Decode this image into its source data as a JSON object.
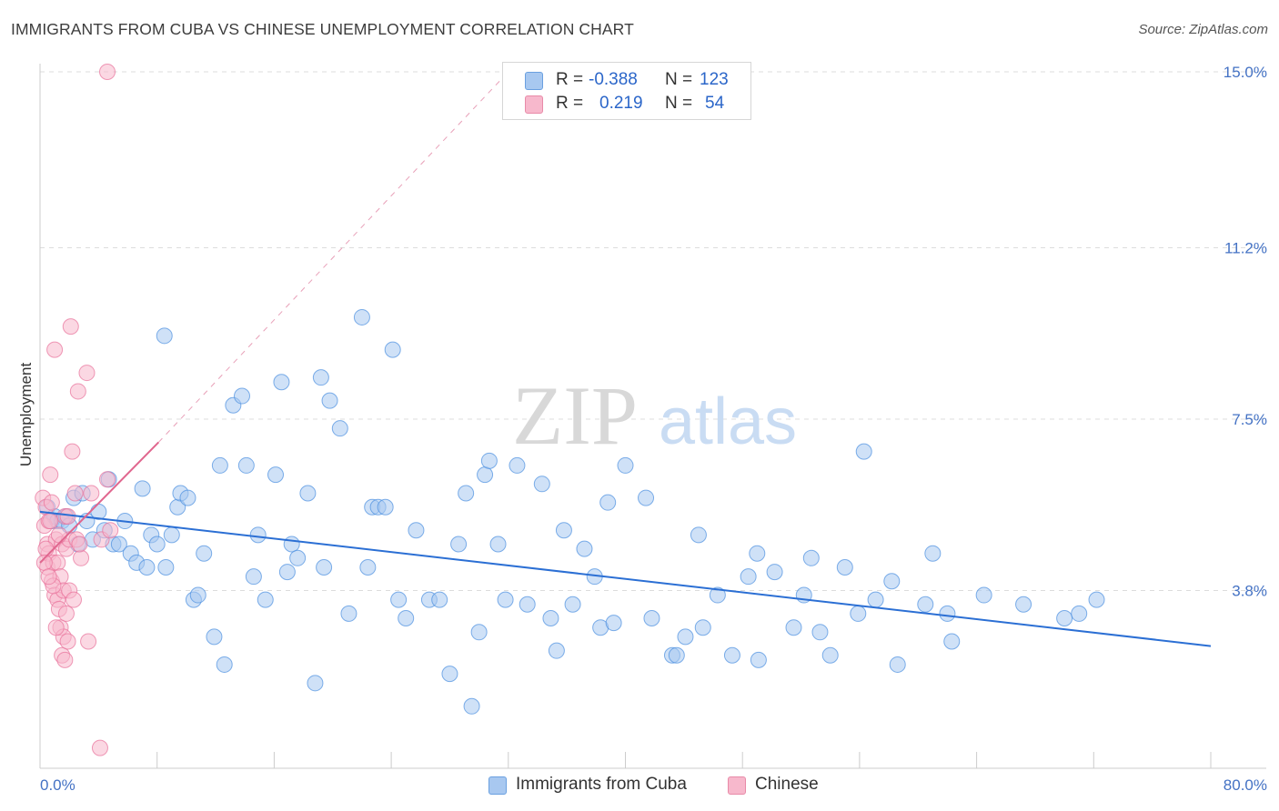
{
  "title": "IMMIGRANTS FROM CUBA VS CHINESE UNEMPLOYMENT CORRELATION CHART",
  "source": "Source: ZipAtlas.com",
  "watermark": {
    "zip": "ZIP",
    "atlas": "atlas"
  },
  "legend": {
    "r_label": "R =",
    "n_label": "N =",
    "rows": [
      {
        "name": "Immigrants from Cuba",
        "r": "-0.388",
        "n": "123",
        "color": "#a8c8f0"
      },
      {
        "name": "Chinese",
        "r": "0.219",
        "n": "54",
        "color": "#f7b8cc"
      }
    ]
  },
  "chart_data": {
    "type": "scatter",
    "title": "IMMIGRANTS FROM CUBA VS CHINESE UNEMPLOYMENT CORRELATION CHART",
    "xlabel": "",
    "ylabel": "Unemployment",
    "xlim": [
      0,
      80
    ],
    "ylim": [
      0,
      15.5
    ],
    "x_tick_labels": [
      "0.0%",
      "80.0%"
    ],
    "y_ticks": [
      3.8,
      7.5,
      11.2,
      15.0
    ],
    "y_tick_labels": [
      "3.8%",
      "7.5%",
      "11.2%",
      "15.0%"
    ],
    "grid": true,
    "series": [
      {
        "name": "Immigrants from Cuba",
        "color": "#4a8fe0",
        "fill": "#a8c8f0",
        "trend": {
          "x": [
            0,
            80
          ],
          "y": [
            5.5,
            2.6
          ],
          "style": "solid"
        },
        "points": [
          [
            0.5,
            5.6
          ],
          [
            0.8,
            5.3
          ],
          [
            1.0,
            5.4
          ],
          [
            1.2,
            5.3
          ],
          [
            1.5,
            5.3
          ],
          [
            1.8,
            5.4
          ],
          [
            2.0,
            5.2
          ],
          [
            2.3,
            5.8
          ],
          [
            2.6,
            4.8
          ],
          [
            2.9,
            5.9
          ],
          [
            3.2,
            5.3
          ],
          [
            3.6,
            4.9
          ],
          [
            4.0,
            5.5
          ],
          [
            4.4,
            5.1
          ],
          [
            4.7,
            6.2
          ],
          [
            5.0,
            4.8
          ],
          [
            5.4,
            4.8
          ],
          [
            5.8,
            5.3
          ],
          [
            6.2,
            4.6
          ],
          [
            6.6,
            4.4
          ],
          [
            7.0,
            6.0
          ],
          [
            7.3,
            4.3
          ],
          [
            7.6,
            5.0
          ],
          [
            8.0,
            4.8
          ],
          [
            8.5,
            9.3
          ],
          [
            8.6,
            4.3
          ],
          [
            9.0,
            5.0
          ],
          [
            9.4,
            5.6
          ],
          [
            9.6,
            5.9
          ],
          [
            10.1,
            5.8
          ],
          [
            10.5,
            3.6
          ],
          [
            10.8,
            3.7
          ],
          [
            11.2,
            4.6
          ],
          [
            11.9,
            2.8
          ],
          [
            12.3,
            6.5
          ],
          [
            12.6,
            2.2
          ],
          [
            13.2,
            7.8
          ],
          [
            13.8,
            8.0
          ],
          [
            14.1,
            6.5
          ],
          [
            14.6,
            4.1
          ],
          [
            14.9,
            5.0
          ],
          [
            15.4,
            3.6
          ],
          [
            16.1,
            6.3
          ],
          [
            16.5,
            8.3
          ],
          [
            16.9,
            4.2
          ],
          [
            17.2,
            4.8
          ],
          [
            17.6,
            4.5
          ],
          [
            18.3,
            5.9
          ],
          [
            18.8,
            1.8
          ],
          [
            19.4,
            4.3
          ],
          [
            19.2,
            8.4
          ],
          [
            19.8,
            7.9
          ],
          [
            20.5,
            7.3
          ],
          [
            21.1,
            3.3
          ],
          [
            22.0,
            9.7
          ],
          [
            22.4,
            4.3
          ],
          [
            22.7,
            5.6
          ],
          [
            23.1,
            5.6
          ],
          [
            23.6,
            5.6
          ],
          [
            24.1,
            9.0
          ],
          [
            24.5,
            3.6
          ],
          [
            25.0,
            3.2
          ],
          [
            25.7,
            5.1
          ],
          [
            26.6,
            3.6
          ],
          [
            27.3,
            3.6
          ],
          [
            28.0,
            2.0
          ],
          [
            28.6,
            4.8
          ],
          [
            29.1,
            5.9
          ],
          [
            29.5,
            1.3
          ],
          [
            30.0,
            2.9
          ],
          [
            30.4,
            6.3
          ],
          [
            30.7,
            6.6
          ],
          [
            31.3,
            4.8
          ],
          [
            31.8,
            3.6
          ],
          [
            32.6,
            6.5
          ],
          [
            33.3,
            3.5
          ],
          [
            34.3,
            6.1
          ],
          [
            34.9,
            3.2
          ],
          [
            35.3,
            2.5
          ],
          [
            35.8,
            5.1
          ],
          [
            36.4,
            3.5
          ],
          [
            37.2,
            4.7
          ],
          [
            37.9,
            4.1
          ],
          [
            38.3,
            3.0
          ],
          [
            38.8,
            5.7
          ],
          [
            39.2,
            3.1
          ],
          [
            40.0,
            6.5
          ],
          [
            41.4,
            5.8
          ],
          [
            41.8,
            3.2
          ],
          [
            43.2,
            2.4
          ],
          [
            43.5,
            2.4
          ],
          [
            44.1,
            2.8
          ],
          [
            45.0,
            5.0
          ],
          [
            45.3,
            3.0
          ],
          [
            46.3,
            3.7
          ],
          [
            47.3,
            2.4
          ],
          [
            48.4,
            4.1
          ],
          [
            49.0,
            4.6
          ],
          [
            49.1,
            2.3
          ],
          [
            50.2,
            4.2
          ],
          [
            51.5,
            3.0
          ],
          [
            52.2,
            3.7
          ],
          [
            52.7,
            4.5
          ],
          [
            53.3,
            2.9
          ],
          [
            54.0,
            2.4
          ],
          [
            55.0,
            4.3
          ],
          [
            55.9,
            3.3
          ],
          [
            56.3,
            6.8
          ],
          [
            57.1,
            3.6
          ],
          [
            58.2,
            4.0
          ],
          [
            58.6,
            2.2
          ],
          [
            60.5,
            3.5
          ],
          [
            61.0,
            4.6
          ],
          [
            62.0,
            3.3
          ],
          [
            62.3,
            2.7
          ],
          [
            64.5,
            3.7
          ],
          [
            67.2,
            3.5
          ],
          [
            70.0,
            3.2
          ],
          [
            71.0,
            3.3
          ],
          [
            72.2,
            3.6
          ]
        ]
      },
      {
        "name": "Chinese",
        "color": "#e8709a",
        "fill": "#f7b8cc",
        "trend": {
          "x": [
            0,
            8.1
          ],
          "y": [
            4.4,
            7.0
          ],
          "style": "solid"
        },
        "trend_extension": {
          "x": [
            8.1,
            32
          ],
          "y": [
            7.0,
            15.0
          ],
          "style": "dashed"
        },
        "points": [
          [
            0.2,
            5.8
          ],
          [
            0.3,
            5.2
          ],
          [
            0.4,
            5.6
          ],
          [
            0.5,
            4.8
          ],
          [
            0.5,
            4.3
          ],
          [
            0.6,
            5.3
          ],
          [
            0.6,
            4.6
          ],
          [
            0.7,
            6.3
          ],
          [
            0.8,
            4.0
          ],
          [
            0.8,
            5.7
          ],
          [
            0.9,
            4.4
          ],
          [
            1.0,
            3.7
          ],
          [
            1.0,
            9.0
          ],
          [
            1.1,
            4.9
          ],
          [
            1.2,
            3.6
          ],
          [
            1.2,
            4.4
          ],
          [
            1.3,
            3.4
          ],
          [
            1.4,
            3.0
          ],
          [
            1.4,
            4.1
          ],
          [
            1.5,
            2.4
          ],
          [
            1.5,
            4.8
          ],
          [
            1.6,
            2.8
          ],
          [
            1.6,
            3.8
          ],
          [
            1.7,
            5.4
          ],
          [
            1.7,
            2.3
          ],
          [
            1.8,
            4.7
          ],
          [
            1.8,
            3.3
          ],
          [
            1.9,
            2.7
          ],
          [
            2.0,
            3.8
          ],
          [
            2.0,
            4.9
          ],
          [
            2.1,
            9.5
          ],
          [
            2.2,
            6.8
          ],
          [
            2.3,
            3.6
          ],
          [
            2.4,
            5.9
          ],
          [
            2.5,
            4.9
          ],
          [
            2.6,
            8.1
          ],
          [
            2.8,
            4.5
          ],
          [
            3.2,
            8.5
          ],
          [
            3.3,
            2.7
          ],
          [
            3.5,
            5.9
          ],
          [
            4.1,
            0.4
          ],
          [
            4.2,
            4.9
          ],
          [
            4.8,
            5.1
          ],
          [
            4.6,
            6.2
          ],
          [
            4.6,
            15.0
          ],
          [
            0.9,
            3.9
          ],
          [
            1.3,
            5.0
          ],
          [
            0.4,
            4.7
          ],
          [
            0.7,
            5.3
          ],
          [
            1.1,
            3.0
          ],
          [
            0.3,
            4.4
          ],
          [
            2.7,
            4.8
          ],
          [
            1.9,
            5.4
          ],
          [
            0.6,
            4.1
          ]
        ]
      }
    ]
  }
}
